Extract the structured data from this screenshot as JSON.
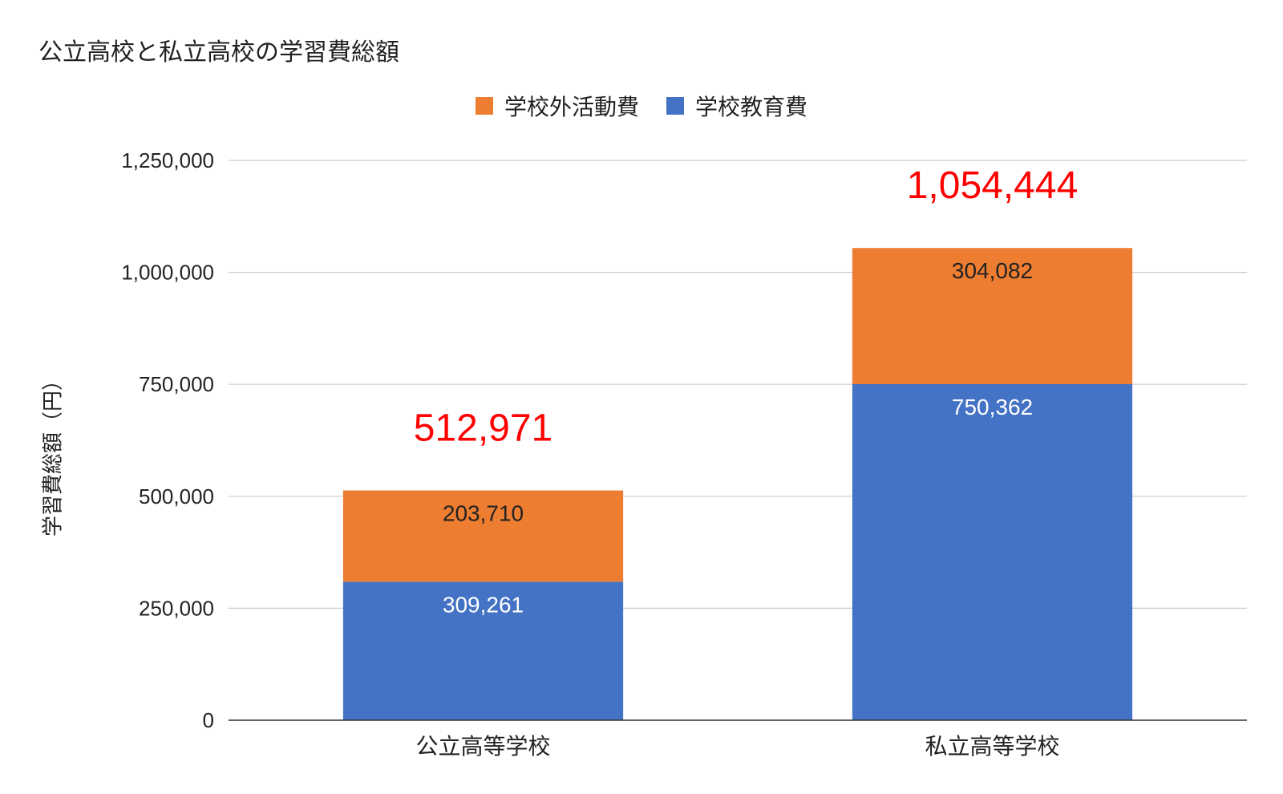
{
  "chart_data": {
    "type": "bar",
    "stacked": true,
    "title": "公立高校と私立高校の学習費総額",
    "xlabel": "",
    "ylabel": "学習費総額（円）",
    "ylim": [
      0,
      1250000
    ],
    "yticks": [
      "0",
      "250,000",
      "500,000",
      "750,000",
      "1,000,000",
      "1,250,000"
    ],
    "categories": [
      "公立高等学校",
      "私立高等学校"
    ],
    "series": [
      {
        "name": "学校教育費",
        "color": "#4472C4",
        "values": [
          309261,
          750362
        ],
        "labels": [
          "309,261",
          "750,362"
        ],
        "label_color": "#ffffff"
      },
      {
        "name": "学校外活動費",
        "color": "#ED7D31",
        "values": [
          203710,
          304082
        ],
        "labels": [
          "203,710",
          "304,082"
        ],
        "label_color": "#222222"
      }
    ],
    "totals": [
      512971,
      1054444
    ],
    "total_labels": [
      "512,971",
      "1,054,444"
    ],
    "total_color": "#FF0000",
    "legend_position": "top",
    "legend_order": [
      "学校外活動費",
      "学校教育費"
    ],
    "grid": true
  }
}
